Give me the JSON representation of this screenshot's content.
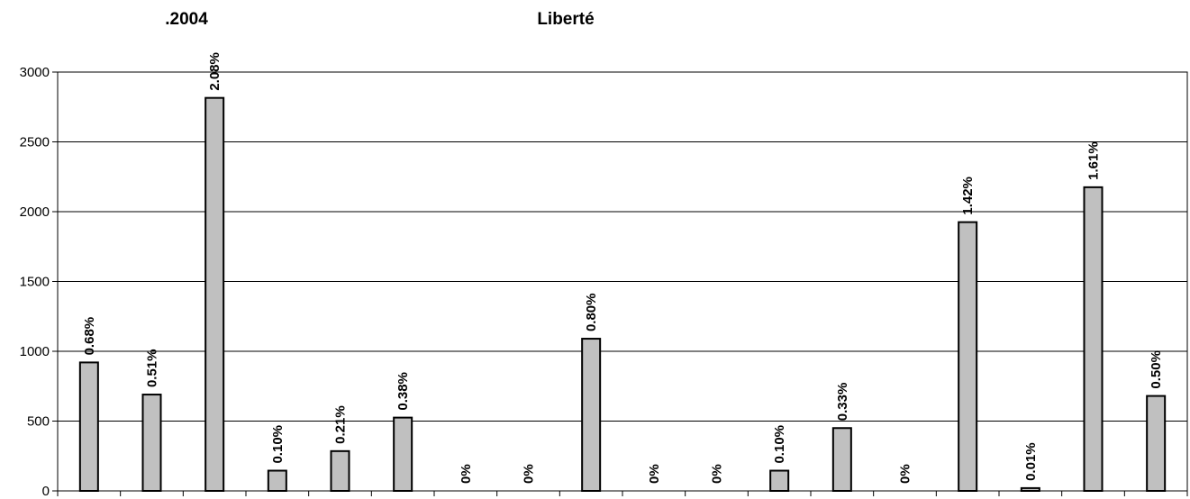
{
  "chart_data": {
    "type": "bar",
    "title_left": ".2004",
    "title": "Liberté",
    "xlabel": "",
    "ylabel": "",
    "ylim": [
      0,
      3000
    ],
    "yticks": [
      0,
      500,
      1000,
      1500,
      2000,
      2500,
      3000
    ],
    "grid": true,
    "values": [
      920,
      690,
      2815,
      145,
      285,
      525,
      0,
      0,
      1090,
      0,
      0,
      145,
      450,
      0,
      1925,
      20,
      2175,
      680
    ],
    "labels": [
      "0.68%",
      "0.51%",
      "2.08%",
      "0.10%",
      "0.21%",
      "0.38%",
      "0%",
      "0%",
      "0.80%",
      "0%",
      "0%",
      "0.10%",
      "0.33%",
      "0%",
      "1.42%",
      "0.01%",
      "1.61%",
      "0.50%"
    ],
    "colors": {
      "bar_fill": "#c0c0c0",
      "bar_stroke": "#000000",
      "grid": "#000000"
    }
  }
}
